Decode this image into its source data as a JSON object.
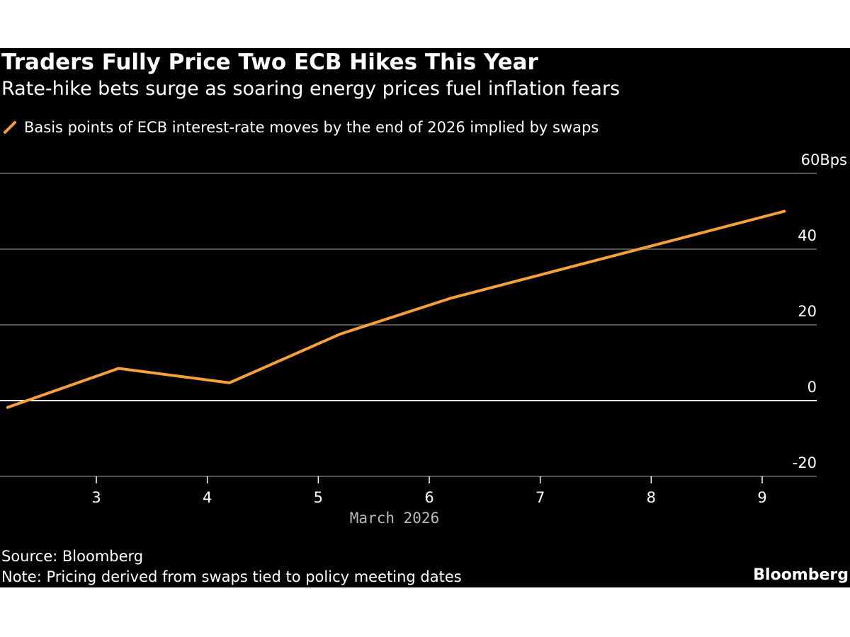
{
  "chart_data": {
    "type": "line",
    "title": "Traders Fully Price Two ECB Hikes This Year",
    "subtitle": "Rate-hike bets surge as soaring energy prices fuel inflation fears",
    "xlabel": "March 2026",
    "ylabel": "",
    "ylim": [
      -20,
      60
    ],
    "xlim": [
      2.2,
      9.7
    ],
    "y_ticks": [
      -20,
      0,
      20,
      40,
      60
    ],
    "y_tick_labels": [
      "-20",
      "0",
      "20",
      "40",
      "60Bps"
    ],
    "x_ticks": [
      3,
      4,
      5,
      6,
      7,
      8,
      9
    ],
    "x_tick_labels": [
      "3",
      "4",
      "5",
      "6",
      "7",
      "8",
      "9"
    ],
    "grid": true,
    "legend_position": "top-left",
    "series": [
      {
        "name": "Basis points of ECB interest-rate moves by the end of 2026 implied by swaps",
        "color": "#f5a03c",
        "x": [
          2.2,
          3.2,
          4.2,
          5.2,
          6.2,
          9.2
        ],
        "values": [
          -1.8,
          8.5,
          4.7,
          17.6,
          27.1,
          50.0
        ]
      }
    ],
    "source": "Source: Bloomberg",
    "note": "Note: Pricing derived from swaps tied to policy meeting dates"
  },
  "brand": "Bloomberg",
  "colors": {
    "background": "#000000",
    "line": "#f5a03c",
    "grid": "#6e6e6e",
    "zero_line": "#ffffff"
  }
}
